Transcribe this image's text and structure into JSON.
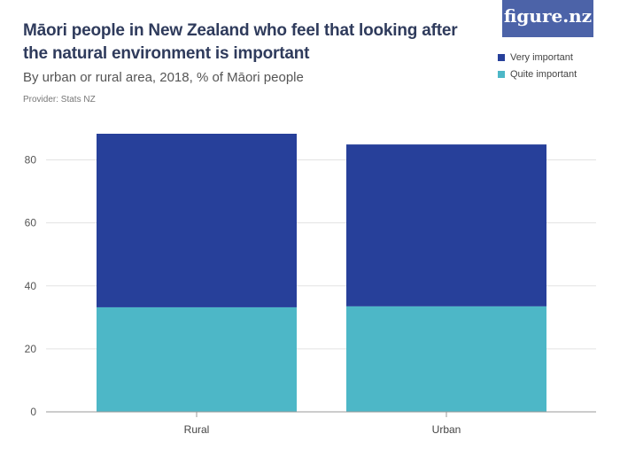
{
  "header": {
    "title": "Māori people in New Zealand who feel that looking after the natural environment is important",
    "subtitle": "By urban or rural area, 2018, % of Māori people",
    "provider": "Provider: Stats NZ",
    "logo_text": "figure.nz"
  },
  "colors": {
    "very_important": "#27409a",
    "quite_important": "#4db7c7",
    "logo_bg": "#4c63a8"
  },
  "chart_data": {
    "type": "bar",
    "stacked": true,
    "categories": [
      "Rural",
      "Urban"
    ],
    "series": [
      {
        "name": "Quite important",
        "values": [
          33.2,
          33.5
        ],
        "color": "#4db7c7"
      },
      {
        "name": "Very important",
        "values": [
          55.1,
          51.4
        ],
        "color": "#27409a"
      }
    ],
    "ylim": [
      0,
      90
    ],
    "yticks": [
      0,
      20,
      40,
      60,
      80
    ],
    "legend": [
      "Very important",
      "Quite important"
    ],
    "grid": true,
    "legend_position": "top-right"
  }
}
